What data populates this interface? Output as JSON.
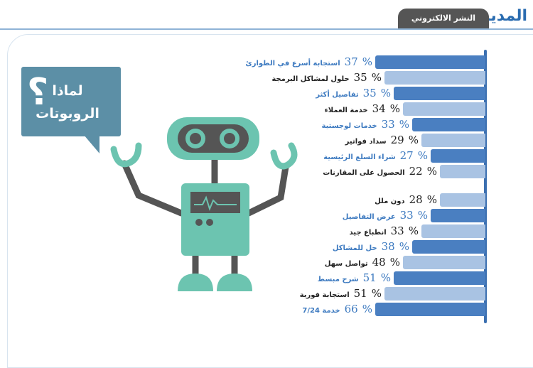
{
  "header": {
    "logo": "المدينة",
    "tab": "النشر الالكتروني"
  },
  "bubble": {
    "title": "لماذا الروبوتات",
    "mark": "؟"
  },
  "colors": {
    "dark_bar": "#4a7fc1",
    "light_bar": "#a9c3e3",
    "dark_text": "#3d7ac0",
    "light_text": "#222222",
    "robot": "#6cc4b0",
    "robot_gray": "#555555"
  },
  "chart_data": [
    {
      "type": "bar",
      "orientation": "horizontal",
      "unit": "%",
      "categories": [
        "استجابة أسرع في الطوارئ",
        "حلول لمشاكل البرمجة",
        "تفاصيل أكثر",
        "خدمة العملاء",
        "خدمات لوجستية",
        "سداد فواتير",
        "شراء السلع الرئيسية",
        "الحصول على المقارنات"
      ],
      "values": [
        37,
        35,
        35,
        34,
        33,
        29,
        27,
        22
      ]
    },
    {
      "type": "bar",
      "orientation": "horizontal",
      "unit": "%",
      "categories": [
        "دون ملل",
        "عرض التفاصيل",
        "انطباع جيد",
        "حل للمشاكل",
        "تواصل سهل",
        "شرح مبسط",
        "استجابة فورية",
        "خدمة 7/24"
      ],
      "values": [
        28,
        33,
        33,
        38,
        48,
        51,
        51,
        66
      ]
    }
  ]
}
